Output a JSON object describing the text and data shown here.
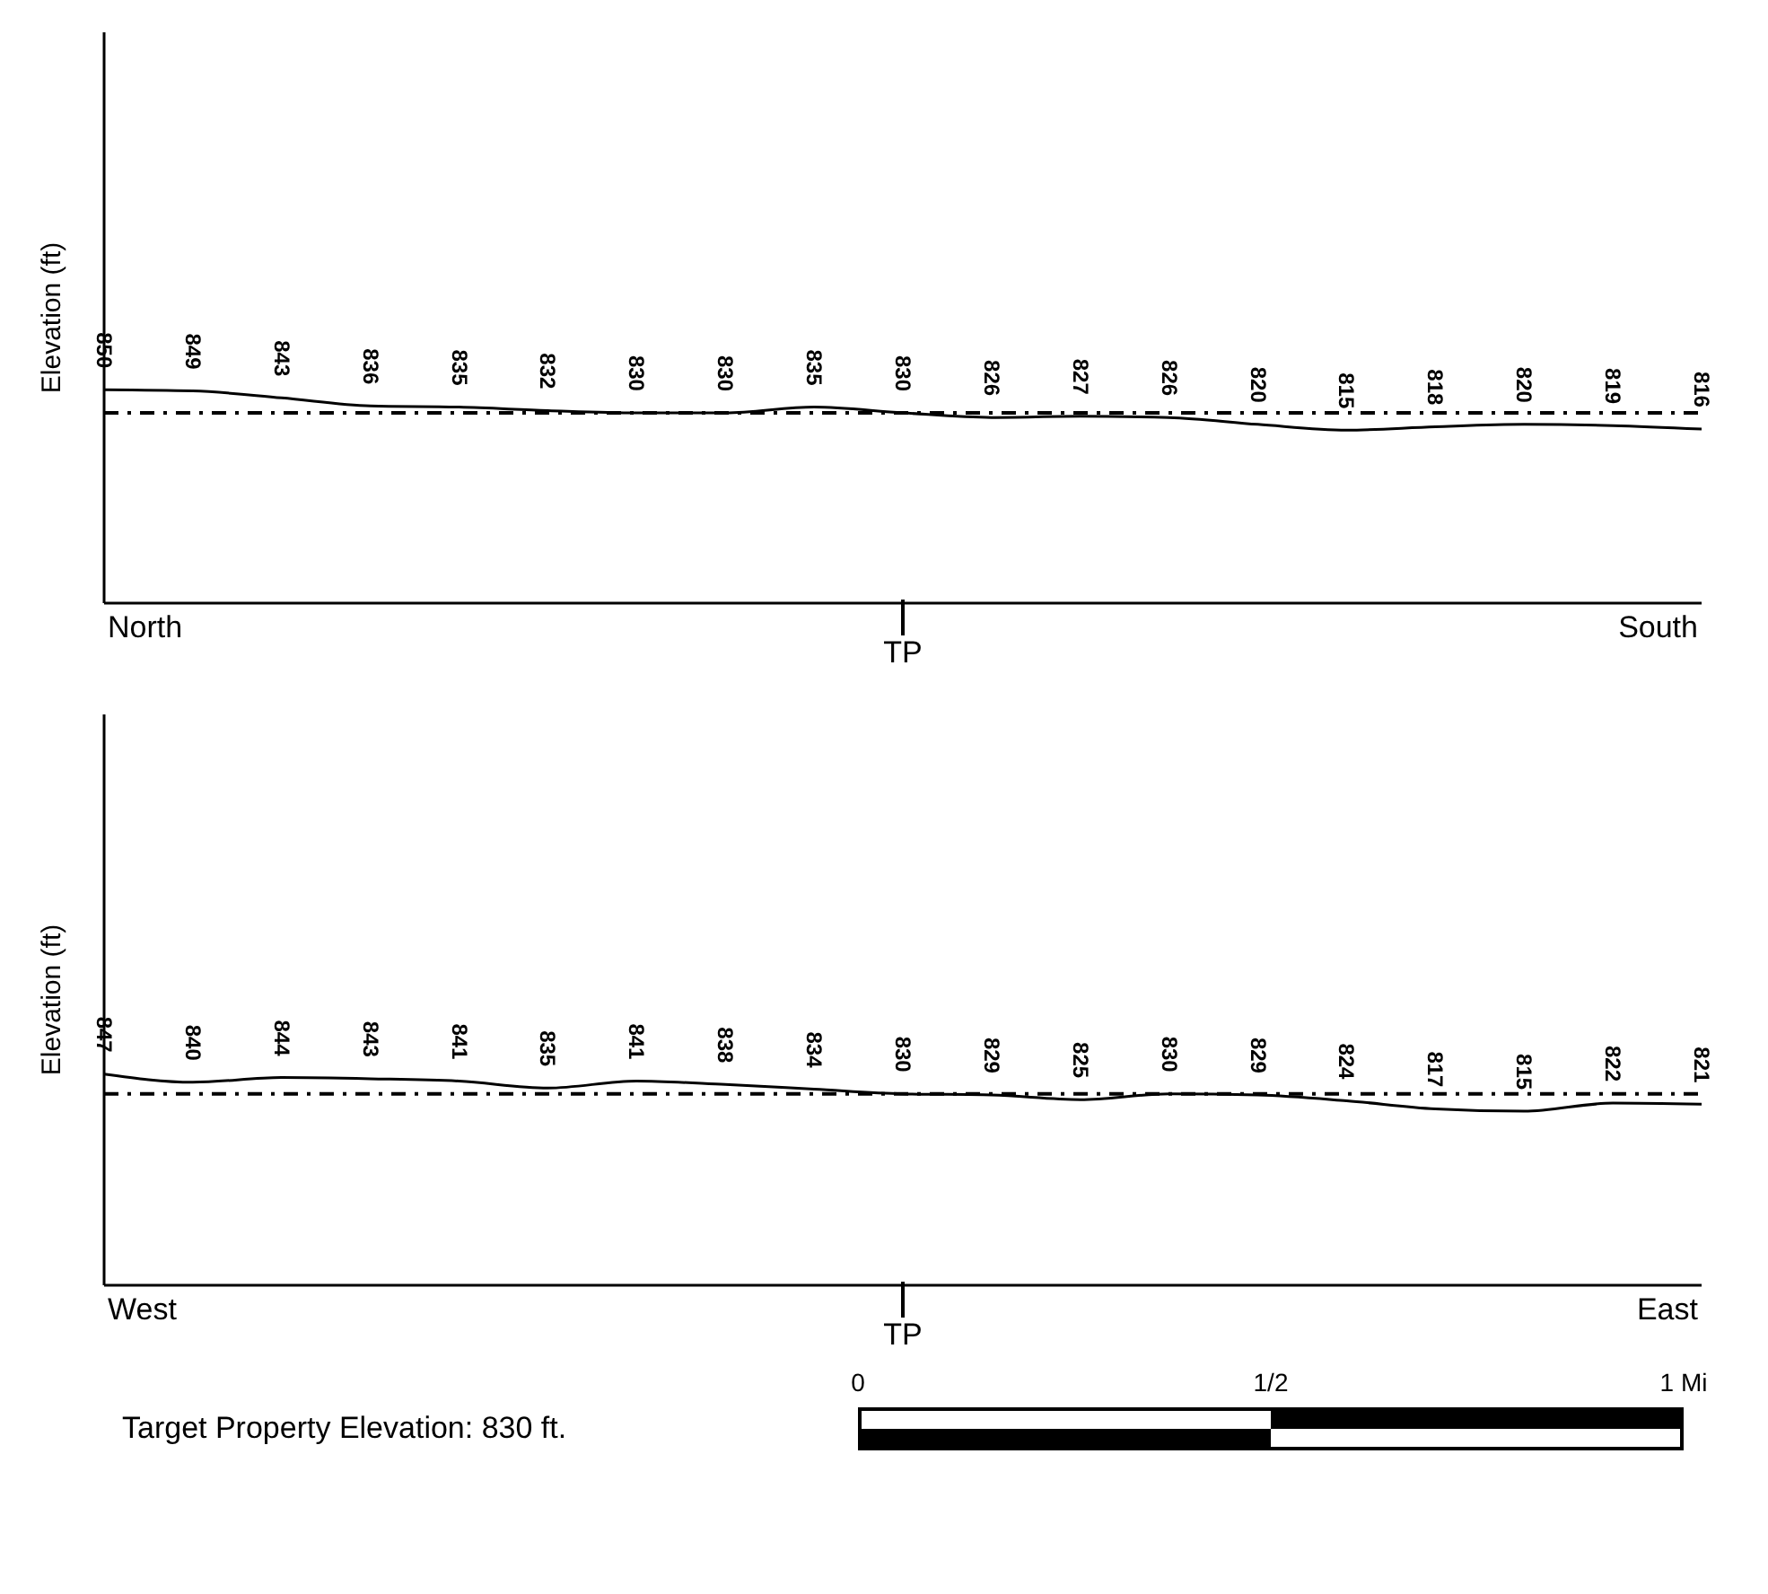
{
  "chart_data": [
    {
      "type": "line",
      "ylabel": "Elevation (ft)",
      "categories": [
        null,
        null,
        null,
        null,
        null,
        null,
        null,
        null,
        null,
        null,
        null,
        null,
        null,
        null,
        null,
        null,
        null,
        null,
        null
      ],
      "series": [
        {
          "color": "#000000",
          "values": [
            850,
            849,
            843,
            836,
            835,
            832,
            830,
            830,
            835,
            830,
            826,
            827,
            826,
            820,
            815,
            818,
            820,
            819,
            816
          ]
        }
      ],
      "ref_lines": [
        {
          "axis": "y",
          "value": 830,
          "color": "#000000",
          "line_style": "dashed"
        }
      ],
      "data_labels": true,
      "annotations": [
        "North",
        "TP",
        "South"
      ],
      "tick_labels": false,
      "marker": "none",
      "line_style": "solid",
      "grid": false,
      "legend": false
    },
    {
      "type": "line",
      "ylabel": "Elevation (ft)",
      "categories": [
        null,
        null,
        null,
        null,
        null,
        null,
        null,
        null,
        null,
        null,
        null,
        null,
        null,
        null,
        null,
        null,
        null,
        null,
        null
      ],
      "series": [
        {
          "color": "#000000",
          "values": [
            847,
            840,
            844,
            843,
            841,
            835,
            841,
            838,
            834,
            830,
            829,
            825,
            830,
            829,
            824,
            817,
            815,
            822,
            821
          ]
        }
      ],
      "ref_lines": [
        {
          "axis": "y",
          "value": 830,
          "color": "#000000",
          "line_style": "dashed"
        }
      ],
      "data_labels": true,
      "annotations": [
        "West",
        "TP",
        "East",
        "Target Property Elevation: 830 ft.",
        "0",
        "1/2",
        "1 Mi"
      ],
      "tick_labels": false,
      "marker": "none",
      "line_style": "solid",
      "grid": false,
      "legend": false
    }
  ]
}
